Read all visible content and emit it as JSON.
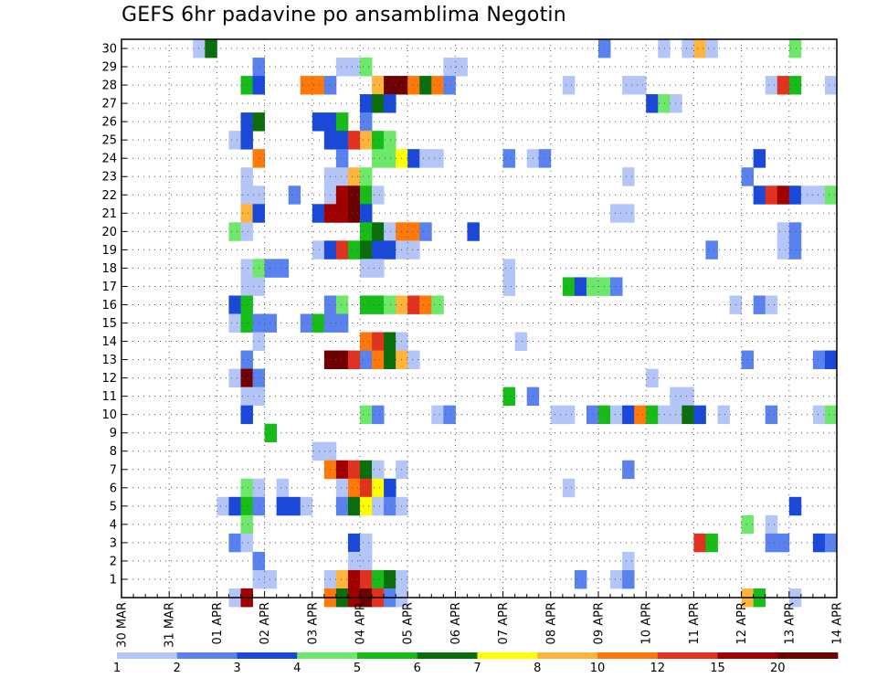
{
  "chart_data": {
    "type": "heatmap",
    "title": "GEFS 6hr padavine po ansamblima Negotin",
    "xlabel": "",
    "ylabel": "",
    "y_ticks": [
      1,
      2,
      3,
      4,
      5,
      6,
      7,
      8,
      9,
      10,
      11,
      12,
      13,
      14,
      15,
      16,
      17,
      18,
      19,
      20,
      21,
      22,
      23,
      24,
      25,
      26,
      27,
      28,
      29,
      30
    ],
    "ylim": [
      0,
      30
    ],
    "x_tick_labels": [
      "30 MAR",
      "31 MAR",
      "01 APR",
      "02 APR",
      "03 APR",
      "04 APR",
      "05 APR",
      "06 APR",
      "07 APR",
      "08 APR",
      "09 APR",
      "10 APR",
      "11 APR",
      "12 APR",
      "13 APR",
      "14 APR"
    ],
    "x_steps_per_day": 4,
    "grid": true,
    "colorbar": {
      "labels": [
        "1",
        "2",
        "3",
        "4",
        "5",
        "6",
        "7",
        "8",
        "10",
        "12",
        "15",
        "20"
      ],
      "colors": [
        "#b4c6f8",
        "#5a82ee",
        "#1a48d8",
        "#6ee86a",
        "#18bc18",
        "#0a6e0a",
        "#ffff00",
        "#ffb43c",
        "#ff780a",
        "#e0321e",
        "#a00000",
        "#6e0000"
      ]
    },
    "cells": [
      [
        6,
        30,
        0
      ],
      [
        7,
        30,
        5
      ],
      [
        40,
        30,
        1
      ],
      [
        45,
        30,
        0
      ],
      [
        47,
        30,
        0
      ],
      [
        48,
        30,
        7
      ],
      [
        49,
        30,
        0
      ],
      [
        56,
        30,
        3
      ],
      [
        11,
        29,
        1
      ],
      [
        18,
        29,
        0
      ],
      [
        19,
        29,
        0
      ],
      [
        20,
        29,
        3
      ],
      [
        27,
        29,
        0
      ],
      [
        28,
        29,
        0
      ],
      [
        10,
        28,
        4
      ],
      [
        11,
        28,
        2
      ],
      [
        15,
        28,
        8
      ],
      [
        16,
        28,
        8
      ],
      [
        17,
        28,
        1
      ],
      [
        21,
        28,
        7
      ],
      [
        22,
        28,
        11
      ],
      [
        23,
        28,
        11
      ],
      [
        24,
        28,
        8
      ],
      [
        25,
        28,
        5
      ],
      [
        26,
        28,
        8
      ],
      [
        27,
        28,
        1
      ],
      [
        37,
        28,
        0
      ],
      [
        42,
        28,
        0
      ],
      [
        43,
        28,
        0
      ],
      [
        54,
        28,
        0
      ],
      [
        55,
        28,
        9
      ],
      [
        56,
        28,
        4
      ],
      [
        59,
        28,
        0
      ],
      [
        20,
        27,
        2
      ],
      [
        21,
        27,
        5
      ],
      [
        22,
        27,
        2
      ],
      [
        44,
        27,
        2
      ],
      [
        45,
        27,
        3
      ],
      [
        46,
        27,
        0
      ],
      [
        10,
        26,
        2
      ],
      [
        11,
        26,
        5
      ],
      [
        16,
        26,
        2
      ],
      [
        17,
        26,
        2
      ],
      [
        18,
        26,
        4
      ],
      [
        20,
        26,
        1
      ],
      [
        9,
        25,
        0
      ],
      [
        10,
        25,
        2
      ],
      [
        17,
        25,
        2
      ],
      [
        18,
        25,
        2
      ],
      [
        19,
        25,
        9
      ],
      [
        20,
        25,
        7
      ],
      [
        21,
        25,
        4
      ],
      [
        22,
        25,
        3
      ],
      [
        11,
        24,
        8
      ],
      [
        18,
        24,
        1
      ],
      [
        21,
        24,
        3
      ],
      [
        22,
        24,
        3
      ],
      [
        23,
        24,
        6
      ],
      [
        24,
        24,
        2
      ],
      [
        25,
        24,
        0
      ],
      [
        26,
        24,
        0
      ],
      [
        32,
        24,
        1
      ],
      [
        34,
        24,
        0
      ],
      [
        35,
        24,
        1
      ],
      [
        53,
        24,
        2
      ],
      [
        10,
        23,
        0
      ],
      [
        17,
        23,
        0
      ],
      [
        18,
        23,
        0
      ],
      [
        19,
        23,
        7
      ],
      [
        20,
        23,
        3
      ],
      [
        42,
        23,
        0
      ],
      [
        52,
        23,
        1
      ],
      [
        10,
        22,
        0
      ],
      [
        11,
        22,
        0
      ],
      [
        14,
        22,
        1
      ],
      [
        17,
        22,
        0
      ],
      [
        18,
        22,
        10
      ],
      [
        19,
        22,
        11
      ],
      [
        20,
        22,
        4
      ],
      [
        21,
        22,
        0
      ],
      [
        53,
        22,
        2
      ],
      [
        54,
        22,
        9
      ],
      [
        55,
        22,
        10
      ],
      [
        56,
        22,
        2
      ],
      [
        57,
        22,
        0
      ],
      [
        58,
        22,
        0
      ],
      [
        59,
        22,
        3
      ],
      [
        10,
        21,
        7
      ],
      [
        11,
        21,
        2
      ],
      [
        16,
        21,
        2
      ],
      [
        17,
        21,
        10
      ],
      [
        18,
        21,
        10
      ],
      [
        19,
        21,
        11
      ],
      [
        20,
        21,
        2
      ],
      [
        41,
        21,
        0
      ],
      [
        42,
        21,
        0
      ],
      [
        9,
        20,
        3
      ],
      [
        10,
        20,
        0
      ],
      [
        20,
        20,
        4
      ],
      [
        21,
        20,
        5
      ],
      [
        22,
        20,
        0
      ],
      [
        23,
        20,
        8
      ],
      [
        24,
        20,
        8
      ],
      [
        25,
        20,
        1
      ],
      [
        29,
        20,
        2
      ],
      [
        55,
        20,
        0
      ],
      [
        56,
        20,
        1
      ],
      [
        16,
        19,
        0
      ],
      [
        17,
        19,
        2
      ],
      [
        18,
        19,
        9
      ],
      [
        19,
        19,
        4
      ],
      [
        20,
        19,
        5
      ],
      [
        21,
        19,
        2
      ],
      [
        22,
        19,
        2
      ],
      [
        23,
        19,
        0
      ],
      [
        24,
        19,
        0
      ],
      [
        49,
        19,
        1
      ],
      [
        55,
        19,
        0
      ],
      [
        56,
        19,
        1
      ],
      [
        10,
        18,
        0
      ],
      [
        11,
        18,
        3
      ],
      [
        12,
        18,
        1
      ],
      [
        13,
        18,
        1
      ],
      [
        20,
        18,
        0
      ],
      [
        21,
        18,
        0
      ],
      [
        32,
        18,
        0
      ],
      [
        10,
        17,
        0
      ],
      [
        11,
        17,
        0
      ],
      [
        32,
        17,
        0
      ],
      [
        37,
        17,
        4
      ],
      [
        38,
        17,
        2
      ],
      [
        39,
        17,
        3
      ],
      [
        40,
        17,
        3
      ],
      [
        41,
        17,
        1
      ],
      [
        9,
        16,
        2
      ],
      [
        10,
        16,
        4
      ],
      [
        17,
        16,
        1
      ],
      [
        18,
        16,
        3
      ],
      [
        20,
        16,
        4
      ],
      [
        21,
        16,
        4
      ],
      [
        22,
        16,
        3
      ],
      [
        23,
        16,
        7
      ],
      [
        24,
        16,
        9
      ],
      [
        25,
        16,
        8
      ],
      [
        26,
        16,
        3
      ],
      [
        51,
        16,
        0
      ],
      [
        53,
        16,
        1
      ],
      [
        54,
        16,
        0
      ],
      [
        9,
        15,
        0
      ],
      [
        10,
        15,
        4
      ],
      [
        11,
        15,
        1
      ],
      [
        12,
        15,
        1
      ],
      [
        15,
        15,
        1
      ],
      [
        16,
        15,
        4
      ],
      [
        17,
        15,
        1
      ],
      [
        18,
        15,
        1
      ],
      [
        11,
        14,
        0
      ],
      [
        20,
        14,
        8
      ],
      [
        21,
        14,
        9
      ],
      [
        22,
        14,
        5
      ],
      [
        23,
        14,
        0
      ],
      [
        33,
        14,
        0
      ],
      [
        10,
        13,
        1
      ],
      [
        17,
        13,
        11
      ],
      [
        18,
        13,
        11
      ],
      [
        19,
        13,
        9
      ],
      [
        20,
        13,
        1
      ],
      [
        21,
        13,
        8
      ],
      [
        22,
        13,
        5
      ],
      [
        23,
        13,
        7
      ],
      [
        24,
        13,
        0
      ],
      [
        52,
        13,
        1
      ],
      [
        58,
        13,
        1
      ],
      [
        59,
        13,
        2
      ],
      [
        9,
        12,
        0
      ],
      [
        10,
        12,
        11
      ],
      [
        11,
        12,
        1
      ],
      [
        44,
        12,
        0
      ],
      [
        10,
        11,
        0
      ],
      [
        11,
        11,
        0
      ],
      [
        32,
        11,
        4
      ],
      [
        34,
        11,
        1
      ],
      [
        46,
        11,
        0
      ],
      [
        47,
        11,
        0
      ],
      [
        10,
        10,
        2
      ],
      [
        20,
        10,
        3
      ],
      [
        21,
        10,
        1
      ],
      [
        26,
        10,
        0
      ],
      [
        27,
        10,
        1
      ],
      [
        36,
        10,
        0
      ],
      [
        37,
        10,
        0
      ],
      [
        39,
        10,
        1
      ],
      [
        40,
        10,
        4
      ],
      [
        41,
        10,
        0
      ],
      [
        42,
        10,
        2
      ],
      [
        43,
        10,
        8
      ],
      [
        44,
        10,
        4
      ],
      [
        45,
        10,
        0
      ],
      [
        46,
        10,
        0
      ],
      [
        47,
        10,
        5
      ],
      [
        48,
        10,
        2
      ],
      [
        50,
        10,
        0
      ],
      [
        54,
        10,
        1
      ],
      [
        58,
        10,
        0
      ],
      [
        59,
        10,
        3
      ],
      [
        12,
        9,
        4
      ],
      [
        16,
        8,
        0
      ],
      [
        17,
        8,
        0
      ],
      [
        17,
        7,
        8
      ],
      [
        18,
        7,
        10
      ],
      [
        19,
        7,
        9
      ],
      [
        20,
        7,
        5
      ],
      [
        21,
        7,
        0
      ],
      [
        23,
        7,
        0
      ],
      [
        42,
        7,
        1
      ],
      [
        10,
        6,
        3
      ],
      [
        11,
        6,
        0
      ],
      [
        13,
        6,
        0
      ],
      [
        18,
        6,
        0
      ],
      [
        19,
        6,
        8
      ],
      [
        20,
        6,
        9
      ],
      [
        21,
        6,
        6
      ],
      [
        22,
        6,
        2
      ],
      [
        37,
        6,
        0
      ],
      [
        8,
        5,
        0
      ],
      [
        9,
        5,
        2
      ],
      [
        10,
        5,
        4
      ],
      [
        11,
        5,
        1
      ],
      [
        13,
        5,
        2
      ],
      [
        14,
        5,
        2
      ],
      [
        15,
        5,
        0
      ],
      [
        18,
        5,
        1
      ],
      [
        19,
        5,
        5
      ],
      [
        20,
        5,
        6
      ],
      [
        21,
        5,
        0
      ],
      [
        22,
        5,
        1
      ],
      [
        23,
        5,
        0
      ],
      [
        56,
        5,
        2
      ],
      [
        10,
        4,
        3
      ],
      [
        52,
        4,
        3
      ],
      [
        54,
        4,
        0
      ],
      [
        9,
        3,
        1
      ],
      [
        10,
        3,
        0
      ],
      [
        19,
        3,
        2
      ],
      [
        20,
        3,
        0
      ],
      [
        48,
        3,
        9
      ],
      [
        49,
        3,
        4
      ],
      [
        54,
        3,
        1
      ],
      [
        55,
        3,
        1
      ],
      [
        58,
        3,
        2
      ],
      [
        59,
        3,
        1
      ],
      [
        11,
        2,
        1
      ],
      [
        19,
        2,
        0
      ],
      [
        20,
        2,
        0
      ],
      [
        42,
        2,
        0
      ],
      [
        11,
        1,
        0
      ],
      [
        12,
        1,
        0
      ],
      [
        17,
        1,
        0
      ],
      [
        18,
        1,
        7
      ],
      [
        19,
        1,
        10
      ],
      [
        20,
        1,
        9
      ],
      [
        21,
        1,
        4
      ],
      [
        22,
        1,
        5
      ],
      [
        23,
        1,
        0
      ],
      [
        38,
        1,
        1
      ],
      [
        41,
        1,
        0
      ],
      [
        42,
        1,
        1
      ],
      [
        9,
        0,
        0
      ],
      [
        10,
        0,
        10
      ],
      [
        17,
        0,
        8
      ],
      [
        18,
        0,
        5
      ],
      [
        19,
        0,
        10
      ],
      [
        20,
        0,
        11
      ],
      [
        21,
        0,
        9
      ],
      [
        22,
        0,
        1
      ],
      [
        23,
        0,
        0
      ],
      [
        52,
        0,
        7
      ],
      [
        53,
        0,
        4
      ],
      [
        56,
        0,
        0
      ]
    ]
  }
}
